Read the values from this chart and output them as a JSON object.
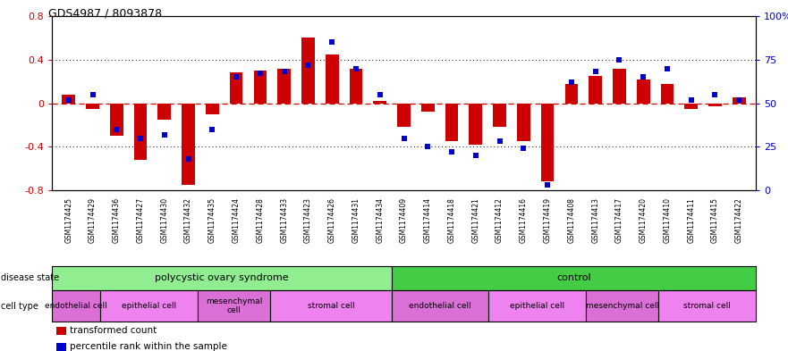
{
  "title": "GDS4987 / 8093878",
  "samples": [
    "GSM1174425",
    "GSM1174429",
    "GSM1174436",
    "GSM1174427",
    "GSM1174430",
    "GSM1174432",
    "GSM1174435",
    "GSM1174424",
    "GSM1174428",
    "GSM1174433",
    "GSM1174423",
    "GSM1174426",
    "GSM1174431",
    "GSM1174434",
    "GSM1174409",
    "GSM1174414",
    "GSM1174418",
    "GSM1174421",
    "GSM1174412",
    "GSM1174416",
    "GSM1174419",
    "GSM1174408",
    "GSM1174413",
    "GSM1174417",
    "GSM1174420",
    "GSM1174410",
    "GSM1174411",
    "GSM1174415",
    "GSM1174422"
  ],
  "bar_values": [
    0.08,
    -0.05,
    -0.3,
    -0.52,
    -0.15,
    -0.75,
    -0.1,
    0.28,
    0.3,
    0.32,
    0.6,
    0.45,
    0.32,
    0.02,
    -0.22,
    -0.08,
    -0.35,
    -0.38,
    -0.22,
    -0.35,
    -0.72,
    0.18,
    0.25,
    0.32,
    0.22,
    0.18,
    -0.05,
    -0.03,
    0.05
  ],
  "dot_values_pct": [
    52,
    55,
    35,
    30,
    32,
    18,
    35,
    65,
    67,
    68,
    72,
    85,
    70,
    55,
    30,
    25,
    22,
    20,
    28,
    24,
    3,
    62,
    68,
    75,
    65,
    70,
    52,
    55,
    52
  ],
  "bar_color": "#cc0000",
  "dot_color": "#0000cc",
  "ylim": [
    -0.8,
    0.8
  ],
  "y2lim": [
    0,
    100
  ],
  "yticks_left": [
    -0.8,
    -0.4,
    0.0,
    0.4,
    0.8
  ],
  "yticks_right": [
    0,
    25,
    50,
    75,
    100
  ],
  "n_samples": 29,
  "disease_state_ranges": [
    {
      "label": "polycystic ovary syndrome",
      "start": 0,
      "end": 14,
      "color": "#90ee90"
    },
    {
      "label": "control",
      "start": 14,
      "end": 29,
      "color": "#44cc44"
    }
  ],
  "cell_type_ranges": [
    {
      "label": "endothelial cell",
      "start": 0,
      "end": 2,
      "color": "#da70d6"
    },
    {
      "label": "epithelial cell",
      "start": 2,
      "end": 6,
      "color": "#ee82ee"
    },
    {
      "label": "mesenchymal\ncell",
      "start": 6,
      "end": 9,
      "color": "#da70d6"
    },
    {
      "label": "stromal cell",
      "start": 9,
      "end": 14,
      "color": "#ee82ee"
    },
    {
      "label": "endothelial cell",
      "start": 14,
      "end": 18,
      "color": "#da70d6"
    },
    {
      "label": "epithelial cell",
      "start": 18,
      "end": 22,
      "color": "#ee82ee"
    },
    {
      "label": "mesenchymal cell",
      "start": 22,
      "end": 25,
      "color": "#da70d6"
    },
    {
      "label": "stromal cell",
      "start": 25,
      "end": 29,
      "color": "#ee82ee"
    }
  ],
  "legend_items": [
    {
      "color": "#cc0000",
      "label": "transformed count"
    },
    {
      "color": "#0000cc",
      "label": "percentile rank within the sample"
    }
  ]
}
